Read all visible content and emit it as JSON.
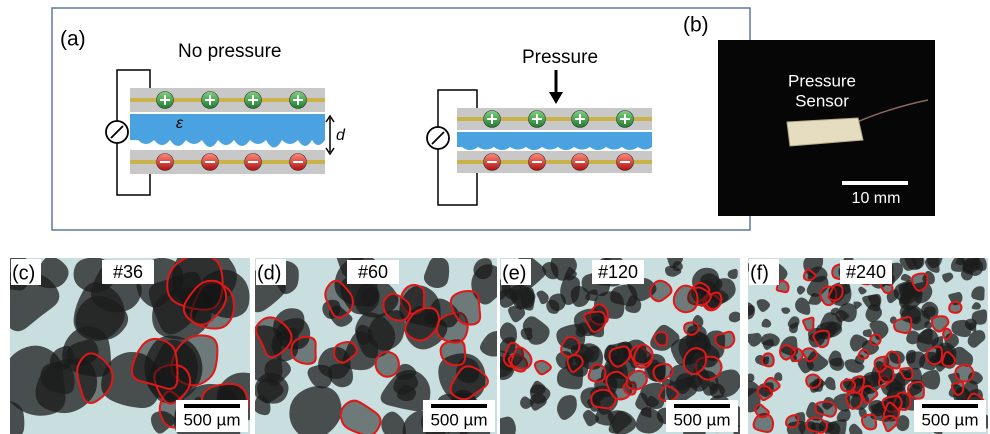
{
  "panel_a": {
    "label": "(a)",
    "left": {
      "title": "No pressure",
      "epsilon": "ε",
      "gap": "d"
    },
    "right": {
      "title": "Pressure"
    }
  },
  "panel_b": {
    "label": "(b)",
    "caption": [
      "Pressure",
      "Sensor"
    ],
    "scale_bar": "10 mm"
  },
  "micrographs": [
    {
      "label": "(c)",
      "sample": "#36",
      "scale_bar": "500 µm"
    },
    {
      "label": "(d)",
      "sample": "#60",
      "scale_bar": "500 µm"
    },
    {
      "label": "(e)",
      "sample": "#120",
      "scale_bar": "500 µm"
    },
    {
      "label": "(f)",
      "sample": "#240",
      "scale_bar": "500 µm"
    }
  ]
}
